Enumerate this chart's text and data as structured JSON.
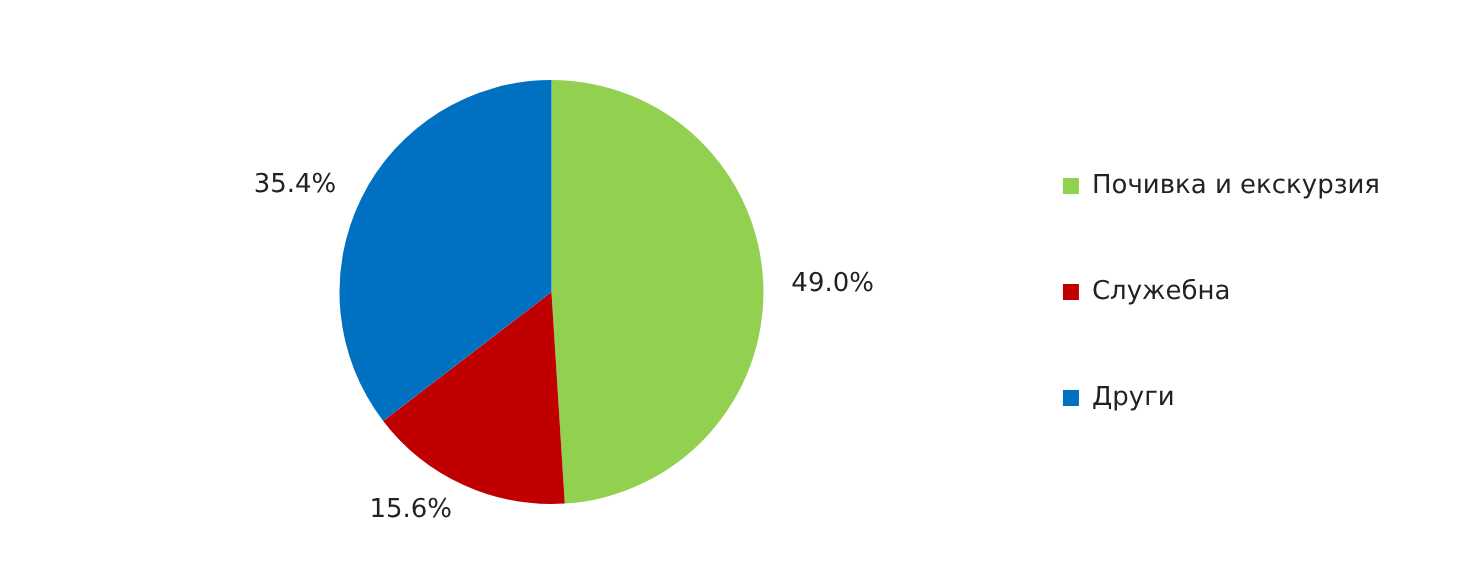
{
  "chart_data": {
    "type": "pie",
    "categories": [
      "Почивка и екскурзия",
      "Служебна",
      "Други"
    ],
    "values": [
      49.0,
      15.6,
      35.4
    ],
    "colors": [
      "#92d050",
      "#c00000",
      "#0070c0"
    ],
    "value_labels": [
      "49.0%",
      "15.6%",
      "35.4%"
    ],
    "legend": "right"
  }
}
